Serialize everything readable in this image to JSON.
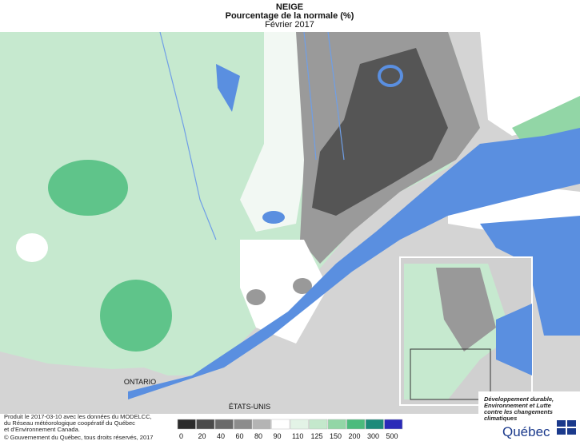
{
  "header": {
    "title": "NEIGE",
    "subtitle": "Pourcentage de la normale (%)",
    "date": "Février 2017"
  },
  "map_labels": {
    "ontario": "ONTARIO",
    "usa": "ÉTATS-UNIS"
  },
  "credits": {
    "produced": [
      "Produit le 2017-03-10 avec les données du MODELCC,",
      "du Réseau météorologique coopératif du Québec",
      "et d'Environnement Canada."
    ],
    "copyright": "© Gouvernement du Québec, tous droits réservés, 2017"
  },
  "legend": {
    "items": [
      {
        "label": 0,
        "color": "#2b2b2b"
      },
      {
        "label": 20,
        "color": "#4a4a4a"
      },
      {
        "label": 40,
        "color": "#6a6a6a"
      },
      {
        "label": 60,
        "color": "#8c8c8c"
      },
      {
        "label": 80,
        "color": "#b4b4b4"
      },
      {
        "label": 90,
        "color": "#ffffff"
      },
      {
        "label": 110,
        "color": "#e3f3e6"
      },
      {
        "label": 125,
        "color": "#c4e8cc"
      },
      {
        "label": 150,
        "color": "#92d6a6"
      },
      {
        "label": 200,
        "color": "#4cbb7d"
      },
      {
        "label": 300,
        "color": "#1d8a7a"
      },
      {
        "label": 500,
        "color": "#2a2ab8"
      }
    ]
  },
  "logo": {
    "ministry": [
      "Développement durable,",
      "Environnement et Lutte",
      "contre les changements",
      "climatiques"
    ],
    "name": "Québec"
  }
}
